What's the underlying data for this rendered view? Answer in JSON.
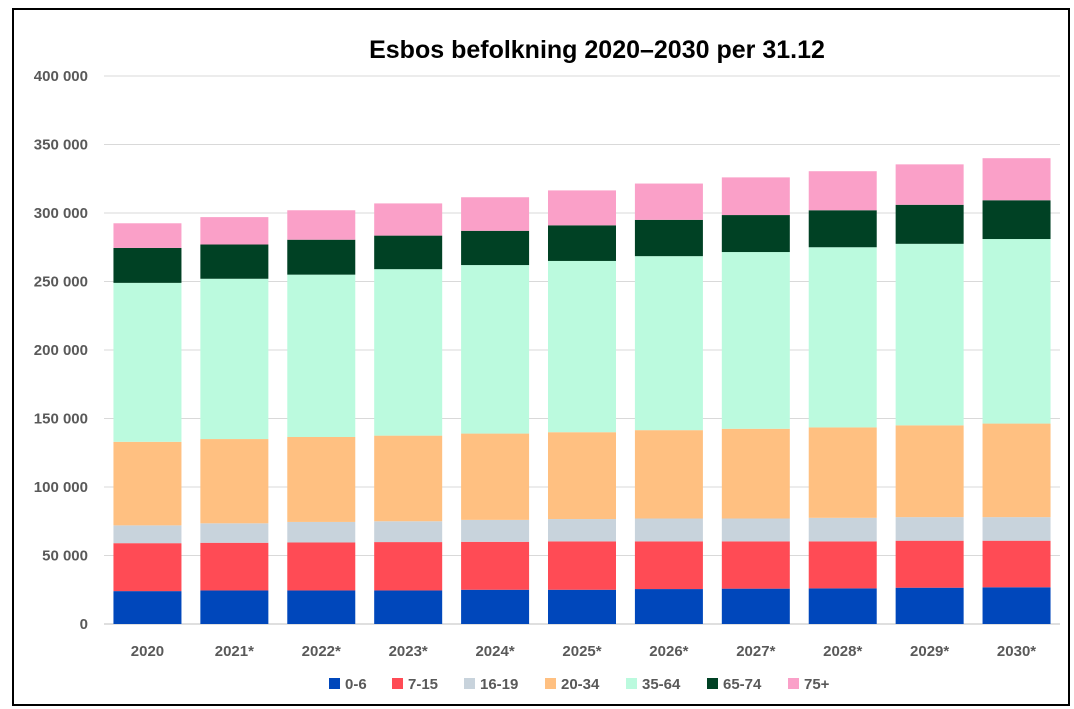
{
  "chart_data": {
    "type": "bar",
    "stacked": true,
    "title": "Esbos befolkning 2020–2030 per 31.12",
    "categories": [
      "2020",
      "2021*",
      "2022*",
      "2023*",
      "2024*",
      "2025*",
      "2026*",
      "2027*",
      "2028*",
      "2029*",
      "2030*"
    ],
    "ylim": [
      0,
      400000
    ],
    "yticks": [
      0,
      50000,
      100000,
      150000,
      200000,
      250000,
      300000,
      350000,
      400000
    ],
    "ytick_labels": [
      "0",
      "50 000",
      "100 000",
      "150 000",
      "200 000",
      "250 000",
      "300 000",
      "350 000",
      "400 000"
    ],
    "grid": true,
    "legend_position": "bottom",
    "series": [
      {
        "name": "0-6",
        "color": "#0047BB",
        "values": [
          24000,
          24500,
          24500,
          24500,
          25000,
          25000,
          25500,
          25800,
          26000,
          26500,
          26800
        ]
      },
      {
        "name": "7-15",
        "color": "#FF4B55",
        "values": [
          35000,
          34800,
          35000,
          35300,
          35000,
          35300,
          34800,
          34500,
          34300,
          34300,
          34000
        ]
      },
      {
        "name": "16-19",
        "color": "#C8D3DC",
        "values": [
          13000,
          14200,
          15000,
          15200,
          16000,
          16300,
          16700,
          16700,
          17200,
          17200,
          17200
        ]
      },
      {
        "name": "20-34",
        "color": "#FFC081",
        "values": [
          61000,
          61500,
          62000,
          62500,
          63000,
          63400,
          64500,
          65500,
          66000,
          67000,
          68300
        ]
      },
      {
        "name": "35-64",
        "color": "#BBFADE",
        "values": [
          116000,
          117000,
          118500,
          121500,
          123000,
          125000,
          127000,
          129000,
          131500,
          132500,
          134700
        ]
      },
      {
        "name": "65-74",
        "color": "#004124",
        "values": [
          25500,
          25000,
          25500,
          24500,
          25000,
          26000,
          26500,
          27000,
          27000,
          28500,
          28300
        ]
      },
      {
        "name": "75+",
        "color": "#FAA0C8",
        "values": [
          18000,
          20000,
          21500,
          23500,
          24500,
          25500,
          26500,
          27500,
          28500,
          29500,
          30700
        ]
      }
    ]
  }
}
